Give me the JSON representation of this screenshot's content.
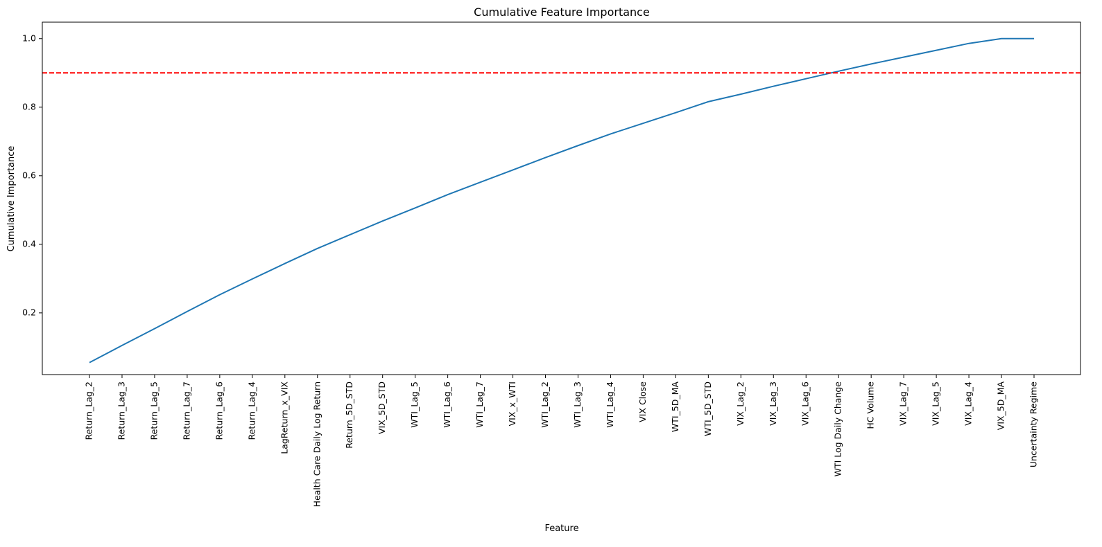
{
  "chart_data": {
    "type": "line",
    "title": "Cumulative Feature Importance",
    "xlabel": "Feature",
    "ylabel": "Cumulative Importance",
    "categories": [
      "Return_Lag_2",
      "Return_Lag_3",
      "Return_Lag_5",
      "Return_Lag_7",
      "Return_Lag_6",
      "Return_Lag_4",
      "LagReturn_x_VIX",
      "Health Care Daily Log Return",
      "Return_5D_STD",
      "VIX_5D_STD",
      "WTI_Lag_5",
      "WTI_Lag_6",
      "WTI_Lag_7",
      "VIX_x_WTI",
      "WTI_Lag_2",
      "WTI_Lag_3",
      "WTI_Lag_4",
      "VIX Close",
      "WTI_5D_MA",
      "WTI_5D_STD",
      "VIX_Lag_2",
      "VIX_Lag_3",
      "VIX_Lag_6",
      "WTI Log Daily Change",
      "HC Volume",
      "VIX_Lag_7",
      "VIX_Lag_5",
      "VIX_Lag_4",
      "VIX_5D_MA",
      "Uncertainty Regime"
    ],
    "series": [
      {
        "values": [
          0.055,
          0.105,
          0.154,
          0.204,
          0.253,
          0.299,
          0.344,
          0.388,
          0.428,
          0.468,
          0.506,
          0.545,
          0.581,
          0.617,
          0.653,
          0.688,
          0.722,
          0.753,
          0.784,
          0.816,
          0.838,
          0.861,
          0.883,
          0.905,
          0.926,
          0.946,
          0.966,
          0.986,
          1.0,
          1.0
        ],
        "color": "#1f77b4"
      }
    ],
    "threshold": {
      "value": 0.9,
      "color": "#ff0000",
      "style": "dashed"
    },
    "ylim": [
      0.02,
      1.048
    ],
    "yticks": [
      0.2,
      0.4,
      0.6,
      0.8,
      1.0
    ],
    "ytick_labels": [
      "0.2",
      "0.4",
      "0.6",
      "0.8",
      "1.0"
    ],
    "grid": false,
    "legend": "none"
  }
}
